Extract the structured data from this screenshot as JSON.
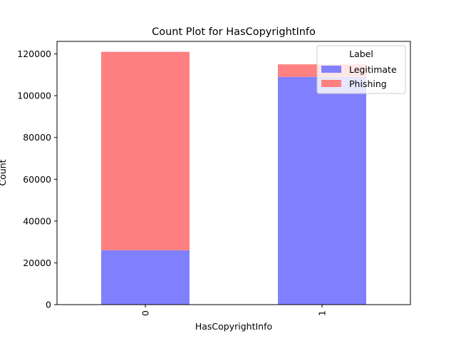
{
  "chart_data": {
    "type": "bar",
    "stacked": true,
    "title": "Count Plot for HasCopyrightInfo",
    "xlabel": "HasCopyrightInfo",
    "ylabel": "Count",
    "categories": [
      "0",
      "1"
    ],
    "series": [
      {
        "name": "Legitimate",
        "color": "#8080ff",
        "values": [
          26000,
          109000
        ]
      },
      {
        "name": "Phishing",
        "color": "#ff8080",
        "values": [
          95000,
          6000
        ]
      }
    ],
    "ylim": [
      0,
      126000
    ],
    "yticks": [
      0,
      20000,
      40000,
      60000,
      80000,
      100000,
      120000
    ],
    "ytick_labels": [
      "0",
      "20000",
      "40000",
      "60000",
      "80000",
      "100000",
      "120000"
    ],
    "legend": {
      "title": "Label",
      "placement": "upper-right"
    },
    "grid": false
  }
}
